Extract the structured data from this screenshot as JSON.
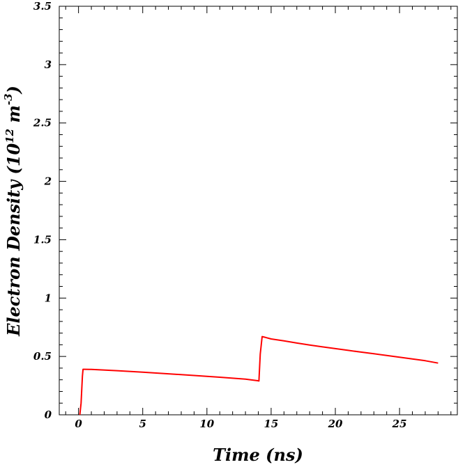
{
  "chart_data": {
    "type": "line",
    "xlabel": "Time (ns)",
    "ylabel_parts": {
      "text": "Electron Density (10",
      "exp1": "12",
      "unit": " m",
      "exp2": "-3",
      "close": ")"
    },
    "xlim": [
      -1.5,
      29.5
    ],
    "ylim": [
      0,
      3.5
    ],
    "x_ticks": [
      0,
      5,
      10,
      15,
      20,
      25
    ],
    "x_tick_labels": [
      "0",
      "5",
      "10",
      "15",
      "20",
      "25"
    ],
    "y_ticks": [
      0,
      0.5,
      1,
      1.5,
      2,
      2.5,
      3,
      3.5
    ],
    "y_tick_labels": [
      "0",
      "0.5",
      "1",
      "1.5",
      "2",
      "2.5",
      "3",
      "3.5"
    ],
    "grid": false,
    "series": [
      {
        "color": "#ff0000",
        "x": [
          0.1,
          0.2,
          0.3,
          0.35,
          0.45,
          1,
          3,
          5,
          7,
          9,
          11,
          13,
          13.95,
          14.05,
          14.15,
          14.3,
          14.5,
          15,
          16,
          17,
          18,
          19,
          20,
          21,
          22,
          23,
          24,
          25,
          26,
          27,
          28
        ],
        "y": [
          0.0,
          0.1,
          0.33,
          0.39,
          0.39,
          0.389,
          0.378,
          0.365,
          0.351,
          0.337,
          0.322,
          0.305,
          0.292,
          0.29,
          0.52,
          0.67,
          0.665,
          0.65,
          0.633,
          0.615,
          0.598,
          0.582,
          0.567,
          0.552,
          0.537,
          0.523,
          0.508,
          0.493,
          0.478,
          0.463,
          0.443
        ]
      }
    ]
  }
}
